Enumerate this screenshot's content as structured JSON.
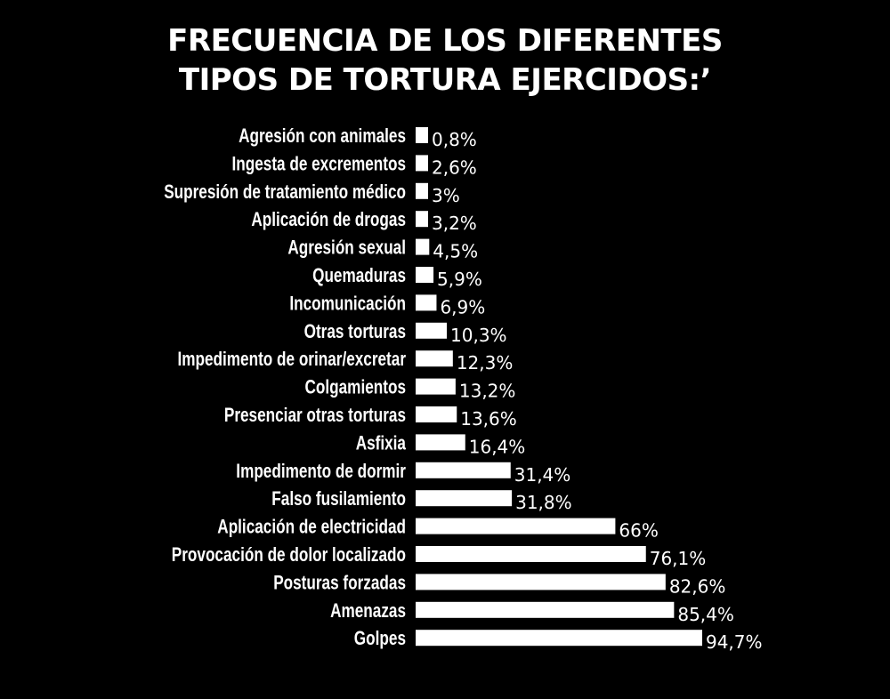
{
  "title_lines": [
    "FRECUENCIA DE LOS DIFERENTES",
    "TIPOS DE TORTURA EJERCIDOS:’"
  ],
  "colors": {
    "background": "#000000",
    "bar": "#ffffff",
    "text": "#ffffff"
  },
  "chart_data": {
    "type": "bar",
    "orientation": "horizontal",
    "title": "FRECUENCIA DE LOS DIFERENTES TIPOS DE TORTURA EJERCIDOS:’",
    "categories": [
      "Agresión con animales",
      "Ingesta de excrementos",
      "Supresión de tratamiento médico",
      "Aplicación de drogas",
      "Agresión sexual",
      "Quemaduras",
      "Incomunicación",
      "Otras torturas",
      "Impedimento de orinar/excretar",
      "Colgamientos",
      "Presenciar otras torturas",
      "Asfixia",
      "Impedimento de dormir",
      "Falso fusilamiento",
      "Aplicación de electricidad",
      "Provocación de dolor localizado",
      "Posturas forzadas",
      "Amenazas",
      "Golpes"
    ],
    "values": [
      0.8,
      2.6,
      3,
      3.2,
      4.5,
      5.9,
      6.9,
      10.3,
      12.3,
      13.2,
      13.6,
      16.4,
      31.4,
      31.8,
      66,
      76.1,
      82.6,
      85.4,
      94.7
    ],
    "value_labels": [
      "0,8%",
      "2,6%",
      "3%",
      "3,2%",
      "4,5%",
      "5,9%",
      "6,9%",
      "10,3%",
      "12,3%",
      "13,2%",
      "13,6%",
      "16,4%",
      "31,4%",
      "31,8%",
      "66%",
      "76,1%",
      "82,6%",
      "85,4%",
      "94,7%"
    ],
    "unit": "%",
    "grid": false,
    "legend": false
  }
}
